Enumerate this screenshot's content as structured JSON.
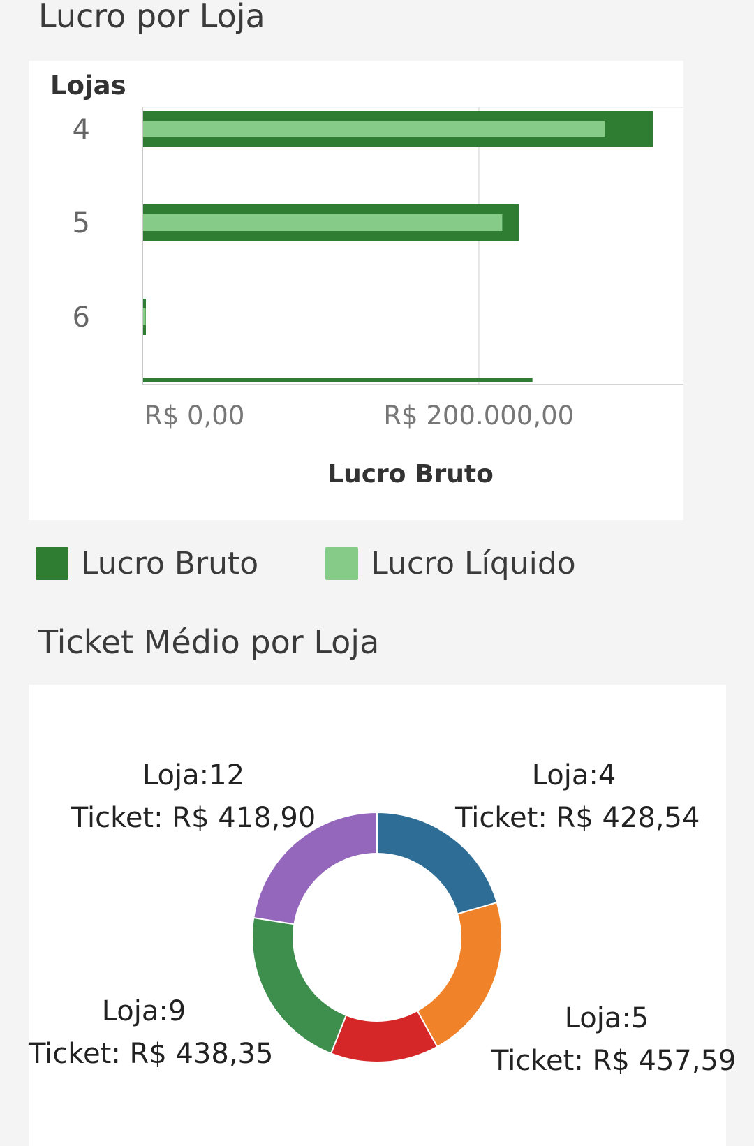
{
  "bar_section": {
    "title": "Lucro por Loja"
  },
  "donut_section": {
    "title": "Ticket Médio por Loja"
  },
  "legend": [
    {
      "label": "Lucro Bruto",
      "color": "#2e7d32"
    },
    {
      "label": "Lucro Líquido",
      "color": "#86cc88"
    }
  ],
  "chart_data": [
    {
      "type": "bar",
      "orientation": "horizontal",
      "title": "Lucro por Loja",
      "ylabel": "Lojas",
      "xlabel": "Lucro Bruto",
      "categories": [
        "4",
        "5",
        "6",
        ""
      ],
      "series": [
        {
          "name": "Lucro Bruto",
          "color": "#2e7d32",
          "values": [
            304000,
            224000,
            1500,
            232000
          ]
        },
        {
          "name": "Lucro Líquido",
          "color": "#86cc88",
          "values": [
            275000,
            214000,
            1500,
            null
          ]
        }
      ],
      "xlim": [
        0,
        322000
      ],
      "xticks": [
        {
          "value": 0,
          "label": "R$ 0,00"
        },
        {
          "value": 200000,
          "label": "R$ 200.000,00"
        }
      ],
      "grid": "vertical",
      "legend": "bottom"
    },
    {
      "type": "pie",
      "donut": true,
      "title": "Ticket Médio por Loja",
      "slices": [
        {
          "loja": "4",
          "ticket": 428.54,
          "color": "#2e6e96",
          "label_line1": "Loja:4",
          "label_line2": "Ticket: R$ 428,54"
        },
        {
          "loja": "5",
          "ticket": 457.59,
          "color": "#f0832a",
          "label_line1": "Loja:5",
          "label_line2": "Ticket: R$ 457,59"
        },
        {
          "loja": "",
          "ticket": null,
          "color": "#d62728",
          "label_line1": "",
          "label_line2": ""
        },
        {
          "loja": "9",
          "ticket": 438.35,
          "color": "#3e8e4e",
          "label_line1": "Loja:9",
          "label_line2": "Ticket: R$ 438,35"
        },
        {
          "loja": "12",
          "ticket": 418.9,
          "color": "#9467bd",
          "label_line1": "Loja:12",
          "label_line2": "Ticket: R$ 418,90"
        }
      ],
      "slice_share_pct": [
        20.5,
        21.5,
        14,
        21.5,
        22.5
      ]
    }
  ]
}
